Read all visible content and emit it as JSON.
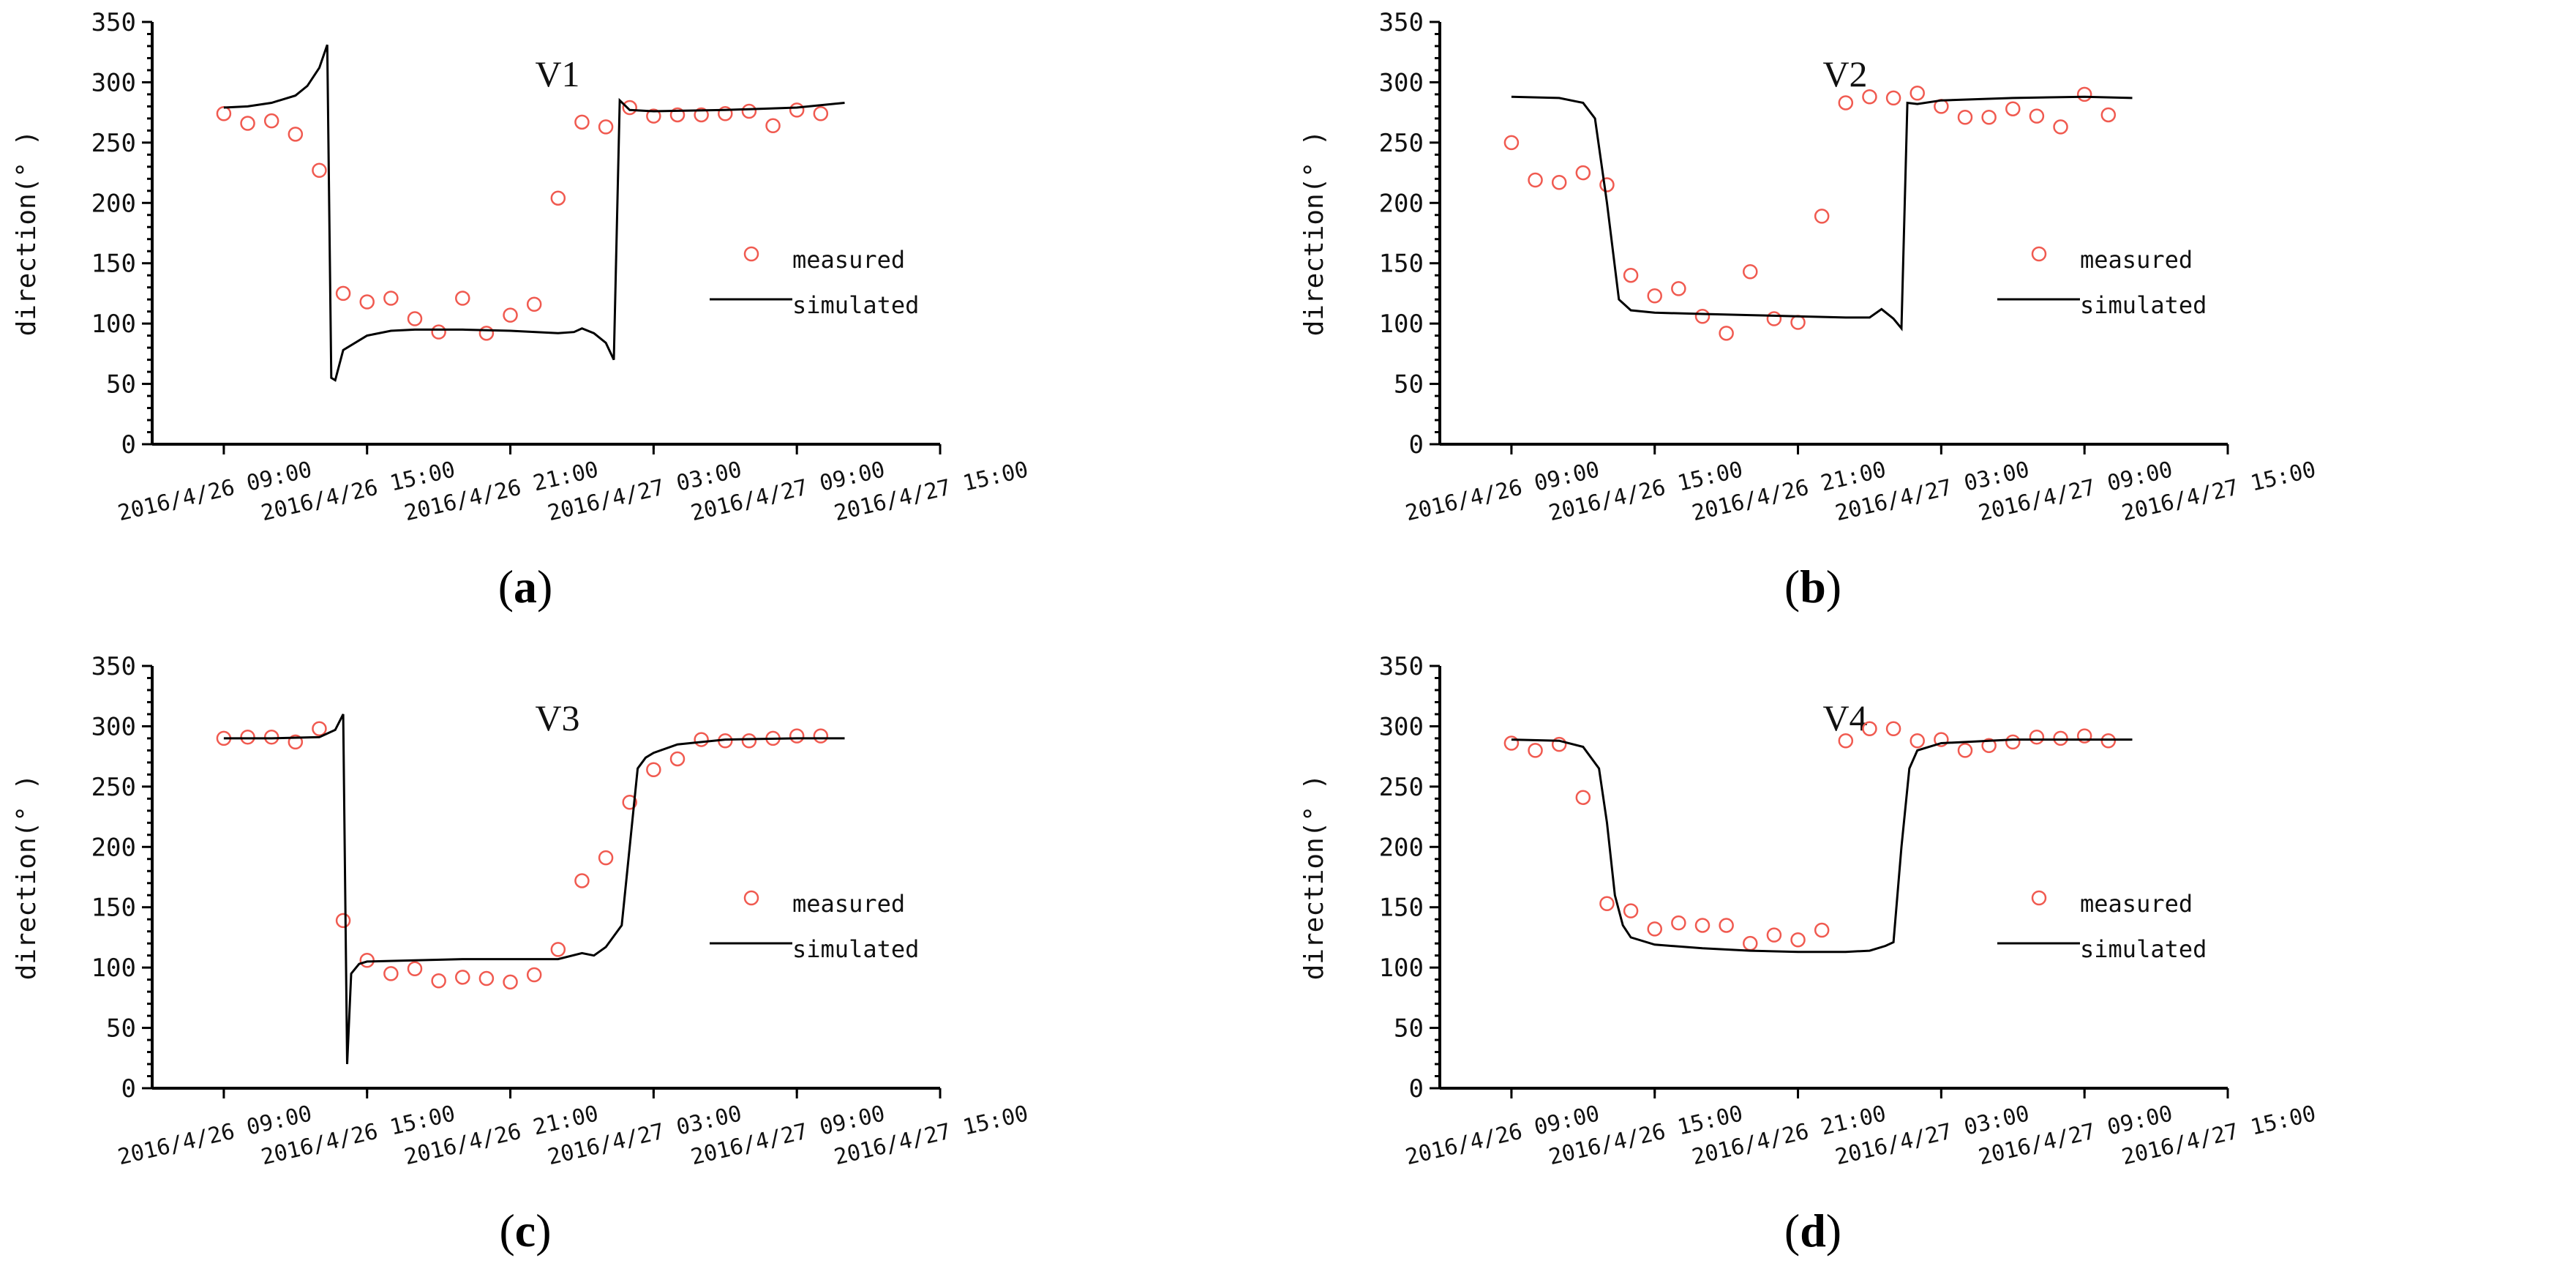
{
  "chart_data": [
    {
      "panel_label_prefix": "(",
      "panel_label_letter": "a",
      "panel_label_suffix": ")",
      "type": "scatter",
      "title": "V1",
      "ylabel": "direction(° )",
      "xlabel": "",
      "ylim": [
        0,
        350
      ],
      "yticks": [
        0,
        50,
        100,
        150,
        200,
        250,
        300,
        350
      ],
      "xlim": [
        "2016-04-26T06:00",
        "2016-04-27T15:00"
      ],
      "xticks": [
        "2016/4/26 09:00",
        "2016/4/26 15:00",
        "2016/4/26 21:00",
        "2016/4/27 03:00",
        "2016/4/27 09:00",
        "2016/4/27 15:00"
      ],
      "legend_position": "right",
      "series": [
        {
          "name": "measured",
          "type": "scatter",
          "color": "#f05a50",
          "x": [
            "2016-04-26T09:00",
            "2016-04-26T10:00",
            "2016-04-26T11:00",
            "2016-04-26T12:00",
            "2016-04-26T13:00",
            "2016-04-26T14:00",
            "2016-04-26T15:00",
            "2016-04-26T16:00",
            "2016-04-26T17:00",
            "2016-04-26T18:00",
            "2016-04-26T19:00",
            "2016-04-26T20:00",
            "2016-04-26T21:00",
            "2016-04-26T22:00",
            "2016-04-26T23:00",
            "2016-04-27T00:00",
            "2016-04-27T01:00",
            "2016-04-27T02:00",
            "2016-04-27T03:00",
            "2016-04-27T04:00",
            "2016-04-27T05:00",
            "2016-04-27T06:00",
            "2016-04-27T07:00",
            "2016-04-27T08:00",
            "2016-04-27T09:00",
            "2016-04-27T10:00"
          ],
          "y": [
            274,
            266,
            268,
            257,
            227,
            125,
            118,
            121,
            104,
            93,
            121,
            92,
            107,
            116,
            204,
            267,
            263,
            279,
            272,
            273,
            273,
            274,
            276,
            264,
            277,
            274
          ]
        },
        {
          "name": "simulated",
          "type": "line",
          "color": "#000000",
          "x": [
            "2016-04-26T09:00",
            "2016-04-26T10:00",
            "2016-04-26T11:00",
            "2016-04-26T12:00",
            "2016-04-26T12:30",
            "2016-04-26T13:00",
            "2016-04-26T13:20",
            "2016-04-26T13:30",
            "2016-04-26T13:40",
            "2016-04-26T14:00",
            "2016-04-26T15:00",
            "2016-04-26T16:00",
            "2016-04-26T17:00",
            "2016-04-26T19:00",
            "2016-04-26T21:00",
            "2016-04-26T23:00",
            "2016-04-26T23:40",
            "2016-04-27T00:00",
            "2016-04-27T00:30",
            "2016-04-27T01:00",
            "2016-04-27T01:20",
            "2016-04-27T01:35",
            "2016-04-27T02:00",
            "2016-04-27T03:00",
            "2016-04-27T06:00",
            "2016-04-27T09:00",
            "2016-04-27T11:00"
          ],
          "y": [
            279,
            280,
            283,
            289,
            297,
            312,
            331,
            55,
            53,
            78,
            90,
            94,
            95,
            95,
            94,
            92,
            93,
            96,
            92,
            84,
            70,
            285,
            277,
            276,
            277,
            279,
            283
          ]
        }
      ]
    },
    {
      "panel_label_prefix": "(",
      "panel_label_letter": "b",
      "panel_label_suffix": ")",
      "type": "scatter",
      "title": "V2",
      "ylabel": "direction(° )",
      "xlabel": "",
      "ylim": [
        0,
        350
      ],
      "yticks": [
        0,
        50,
        100,
        150,
        200,
        250,
        300,
        350
      ],
      "xlim": [
        "2016-04-26T06:00",
        "2016-04-27T15:00"
      ],
      "xticks": [
        "2016/4/26 09:00",
        "2016/4/26 15:00",
        "2016/4/26 21:00",
        "2016/4/27 03:00",
        "2016/4/27 09:00",
        "2016/4/27 15:00"
      ],
      "legend_position": "right",
      "series": [
        {
          "name": "measured",
          "type": "scatter",
          "color": "#f05a50",
          "x": [
            "2016-04-26T09:00",
            "2016-04-26T10:00",
            "2016-04-26T11:00",
            "2016-04-26T12:00",
            "2016-04-26T13:00",
            "2016-04-26T14:00",
            "2016-04-26T15:00",
            "2016-04-26T16:00",
            "2016-04-26T17:00",
            "2016-04-26T18:00",
            "2016-04-26T19:00",
            "2016-04-26T20:00",
            "2016-04-26T21:00",
            "2016-04-26T22:00",
            "2016-04-26T23:00",
            "2016-04-27T00:00",
            "2016-04-27T01:00",
            "2016-04-27T02:00",
            "2016-04-27T03:00",
            "2016-04-27T04:00",
            "2016-04-27T05:00",
            "2016-04-27T06:00",
            "2016-04-27T07:00",
            "2016-04-27T08:00",
            "2016-04-27T09:00",
            "2016-04-27T10:00"
          ],
          "y": [
            250,
            219,
            217,
            225,
            215,
            140,
            123,
            129,
            106,
            92,
            143,
            104,
            101,
            189,
            283,
            288,
            287,
            291,
            280,
            271,
            271,
            278,
            272,
            263,
            290,
            273
          ]
        },
        {
          "name": "simulated",
          "type": "line",
          "color": "#000000",
          "x": [
            "2016-04-26T09:00",
            "2016-04-26T11:00",
            "2016-04-26T12:00",
            "2016-04-26T12:30",
            "2016-04-26T13:00",
            "2016-04-26T13:30",
            "2016-04-26T14:00",
            "2016-04-26T15:00",
            "2016-04-26T17:00",
            "2016-04-26T19:00",
            "2016-04-26T21:00",
            "2016-04-26T23:00",
            "2016-04-27T00:00",
            "2016-04-27T00:30",
            "2016-04-27T01:00",
            "2016-04-27T01:20",
            "2016-04-27T01:35",
            "2016-04-27T02:00",
            "2016-04-27T03:00",
            "2016-04-27T06:00",
            "2016-04-27T09:00",
            "2016-04-27T11:00"
          ],
          "y": [
            288,
            287,
            283,
            270,
            200,
            120,
            111,
            109,
            108,
            107,
            106,
            105,
            105,
            112,
            104,
            96,
            283,
            282,
            285,
            287,
            288,
            287
          ]
        }
      ]
    },
    {
      "panel_label_prefix": "(",
      "panel_label_letter": "c",
      "panel_label_suffix": ")",
      "type": "scatter",
      "title": "V3",
      "ylabel": "direction(° )",
      "xlabel": "",
      "ylim": [
        0,
        350
      ],
      "yticks": [
        0,
        50,
        100,
        150,
        200,
        250,
        300,
        350
      ],
      "xlim": [
        "2016-04-26T06:00",
        "2016-04-27T15:00"
      ],
      "xticks": [
        "2016/4/26 09:00",
        "2016/4/26 15:00",
        "2016/4/26 21:00",
        "2016/4/27 03:00",
        "2016/4/27 09:00",
        "2016/4/27 15:00"
      ],
      "legend_position": "right",
      "series": [
        {
          "name": "measured",
          "type": "scatter",
          "color": "#f05a50",
          "x": [
            "2016-04-26T09:00",
            "2016-04-26T10:00",
            "2016-04-26T11:00",
            "2016-04-26T12:00",
            "2016-04-26T13:00",
            "2016-04-26T14:00",
            "2016-04-26T15:00",
            "2016-04-26T16:00",
            "2016-04-26T17:00",
            "2016-04-26T18:00",
            "2016-04-26T19:00",
            "2016-04-26T20:00",
            "2016-04-26T21:00",
            "2016-04-26T22:00",
            "2016-04-26T23:00",
            "2016-04-27T00:00",
            "2016-04-27T01:00",
            "2016-04-27T02:00",
            "2016-04-27T03:00",
            "2016-04-27T04:00",
            "2016-04-27T05:00",
            "2016-04-27T06:00",
            "2016-04-27T07:00",
            "2016-04-27T08:00",
            "2016-04-27T09:00",
            "2016-04-27T10:00"
          ],
          "y": [
            290,
            291,
            291,
            287,
            298,
            139,
            106,
            95,
            99,
            89,
            92,
            91,
            88,
            94,
            115,
            172,
            191,
            237,
            264,
            273,
            289,
            288,
            288,
            290,
            292,
            292
          ]
        },
        {
          "name": "simulated",
          "type": "line",
          "color": "#000000",
          "x": [
            "2016-04-26T09:00",
            "2016-04-26T11:00",
            "2016-04-26T13:00",
            "2016-04-26T13:40",
            "2016-04-26T14:00",
            "2016-04-26T14:10",
            "2016-04-26T14:20",
            "2016-04-26T14:40",
            "2016-04-26T15:00",
            "2016-04-26T17:00",
            "2016-04-26T19:00",
            "2016-04-26T21:00",
            "2016-04-26T23:00",
            "2016-04-27T00:00",
            "2016-04-27T00:30",
            "2016-04-27T01:00",
            "2016-04-27T01:40",
            "2016-04-27T02:00",
            "2016-04-27T02:20",
            "2016-04-27T02:40",
            "2016-04-27T03:00",
            "2016-04-27T04:00",
            "2016-04-27T06:00",
            "2016-04-27T09:00",
            "2016-04-27T11:00"
          ],
          "y": [
            290,
            290,
            291,
            297,
            310,
            20,
            95,
            103,
            105,
            106,
            107,
            107,
            107,
            112,
            110,
            117,
            135,
            200,
            265,
            274,
            278,
            285,
            289,
            290,
            290
          ]
        }
      ]
    },
    {
      "panel_label_prefix": "(",
      "panel_label_letter": "d",
      "panel_label_suffix": ")",
      "type": "scatter",
      "title": "V4",
      "ylabel": "direction(° )",
      "xlabel": "",
      "ylim": [
        0,
        350
      ],
      "yticks": [
        0,
        50,
        100,
        150,
        200,
        250,
        300,
        350
      ],
      "xlim": [
        "2016-04-26T06:00",
        "2016-04-27T15:00"
      ],
      "xticks": [
        "2016/4/26 09:00",
        "2016/4/26 15:00",
        "2016/4/26 21:00",
        "2016/4/27 03:00",
        "2016/4/27 09:00",
        "2016/4/27 15:00"
      ],
      "legend_position": "right",
      "series": [
        {
          "name": "measured",
          "type": "scatter",
          "color": "#f05a50",
          "x": [
            "2016-04-26T09:00",
            "2016-04-26T10:00",
            "2016-04-26T11:00",
            "2016-04-26T12:00",
            "2016-04-26T13:00",
            "2016-04-26T14:00",
            "2016-04-26T15:00",
            "2016-04-26T16:00",
            "2016-04-26T17:00",
            "2016-04-26T18:00",
            "2016-04-26T19:00",
            "2016-04-26T20:00",
            "2016-04-26T21:00",
            "2016-04-26T22:00",
            "2016-04-26T23:00",
            "2016-04-27T00:00",
            "2016-04-27T01:00",
            "2016-04-27T02:00",
            "2016-04-27T03:00",
            "2016-04-27T04:00",
            "2016-04-27T05:00",
            "2016-04-27T06:00",
            "2016-04-27T07:00",
            "2016-04-27T08:00",
            "2016-04-27T09:00",
            "2016-04-27T10:00"
          ],
          "y": [
            286,
            280,
            285,
            241,
            153,
            147,
            132,
            137,
            135,
            135,
            120,
            127,
            123,
            131,
            288,
            298,
            298,
            288,
            289,
            280,
            284,
            287,
            291,
            290,
            292,
            288
          ]
        },
        {
          "name": "simulated",
          "type": "line",
          "color": "#000000",
          "x": [
            "2016-04-26T09:00",
            "2016-04-26T11:00",
            "2016-04-26T12:00",
            "2016-04-26T12:40",
            "2016-04-26T13:00",
            "2016-04-26T13:20",
            "2016-04-26T13:40",
            "2016-04-26T14:00",
            "2016-04-26T15:00",
            "2016-04-26T17:00",
            "2016-04-26T19:00",
            "2016-04-26T21:00",
            "2016-04-26T23:00",
            "2016-04-27T00:00",
            "2016-04-27T00:40",
            "2016-04-27T01:00",
            "2016-04-27T01:20",
            "2016-04-27T01:40",
            "2016-04-27T02:00",
            "2016-04-27T03:00",
            "2016-04-27T06:00",
            "2016-04-27T09:00",
            "2016-04-27T11:00"
          ],
          "y": [
            289,
            288,
            283,
            265,
            220,
            160,
            135,
            125,
            119,
            116,
            114,
            113,
            113,
            114,
            118,
            121,
            200,
            265,
            280,
            286,
            289,
            289,
            289
          ]
        }
      ]
    }
  ]
}
